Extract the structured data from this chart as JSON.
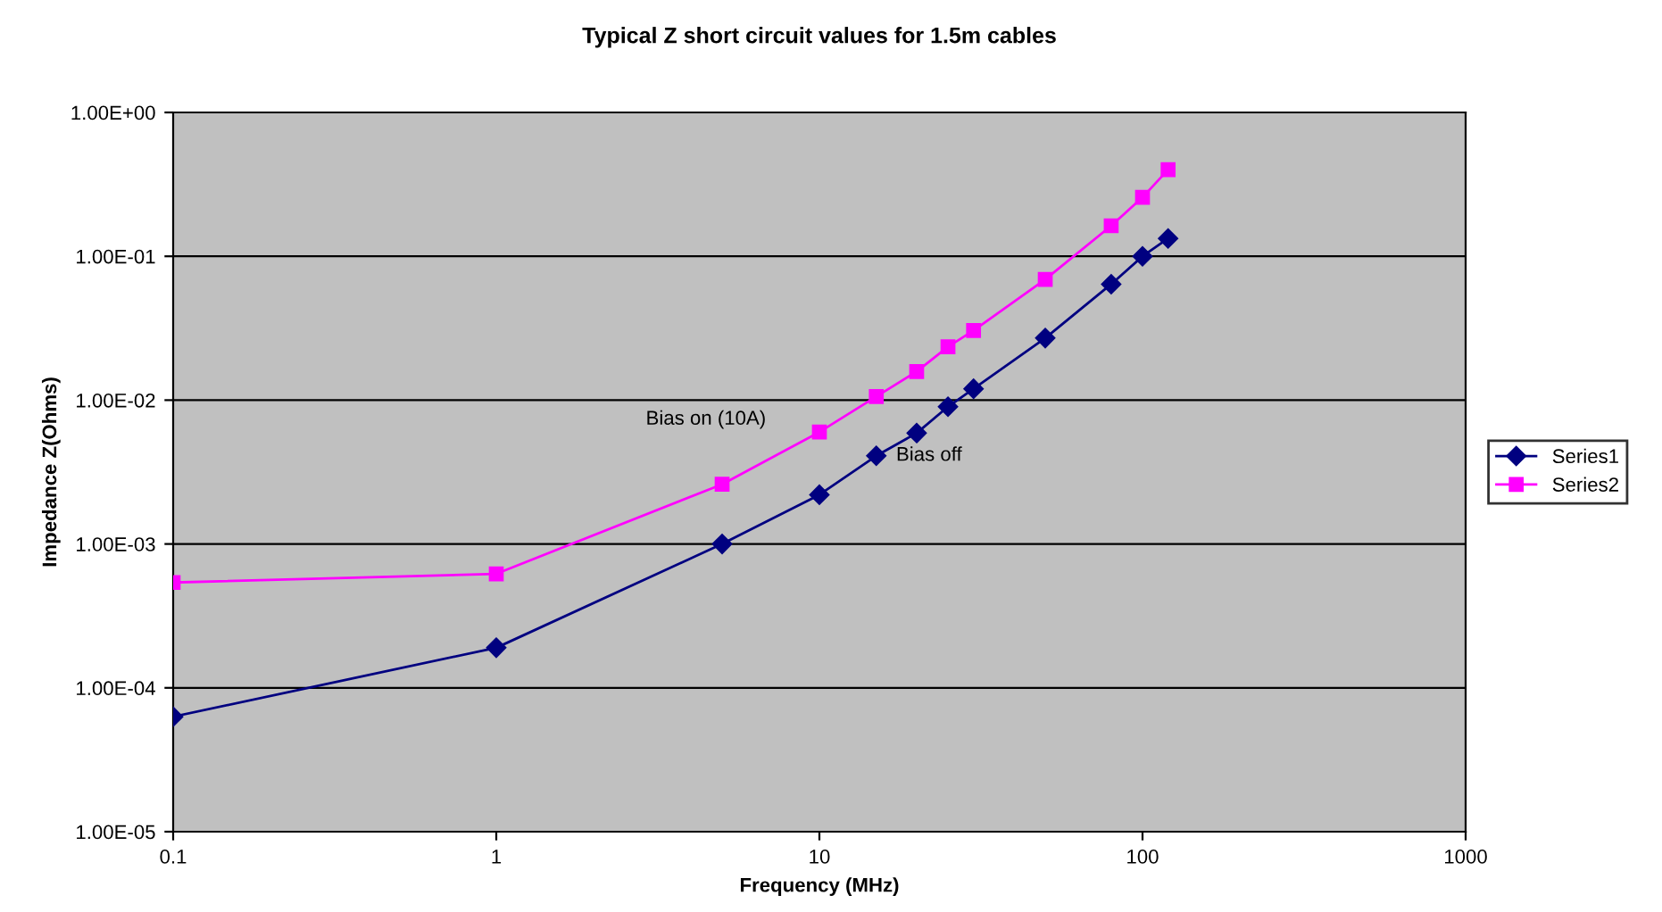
{
  "chart_data": {
    "type": "line",
    "title": "Typical Z short circuit values for 1.5m cables",
    "xlabel": "Frequency (MHz)",
    "ylabel": "Impedance Z(Ohms)",
    "log": "xy",
    "grid": "y",
    "legend": "right",
    "xlim": [
      0.1,
      1000
    ],
    "xticks": [
      0.1,
      1,
      10,
      100,
      1000
    ],
    "ylim": [
      1e-05,
      1
    ],
    "yticks": [
      {
        "value": 1e-05,
        "label": "1.00E-05"
      },
      {
        "value": 0.0001,
        "label": "1.00E-04"
      },
      {
        "value": 0.001,
        "label": "1.00E-03"
      },
      {
        "value": 0.01,
        "label": "1.00E-02"
      },
      {
        "value": 0.1,
        "label": "1.00E-01"
      },
      {
        "value": 1,
        "label": "1.00E+00"
      }
    ],
    "x": [
      0.1,
      1,
      5,
      10,
      15,
      20,
      25,
      30,
      50,
      80,
      100,
      120
    ],
    "series": [
      {
        "name": "Series1",
        "color": "#000080",
        "marker": "diamond",
        "values": [
          6.3e-05,
          0.00019,
          0.001,
          0.0022,
          0.0041,
          0.0059,
          0.009,
          0.012,
          0.027,
          0.064,
          0.1,
          0.133
        ]
      },
      {
        "name": "Series2",
        "color": "#ff00ff",
        "marker": "square",
        "values": [
          0.00054,
          0.00062,
          0.0026,
          0.006,
          0.0106,
          0.0158,
          0.0235,
          0.0305,
          0.069,
          0.163,
          0.257,
          0.4
        ]
      }
    ],
    "annotations": [
      {
        "text": "Bias on (10A)",
        "x": 10,
        "y": 0.006
      },
      {
        "text": "Bias off",
        "x": 15,
        "y": 0.0041
      }
    ]
  }
}
